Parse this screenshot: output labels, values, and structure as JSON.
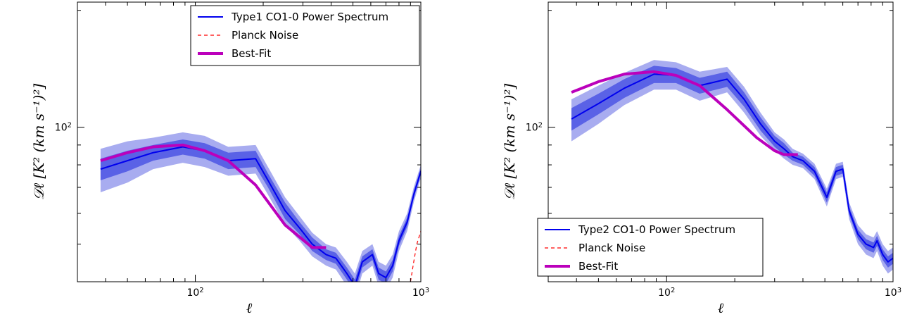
{
  "chart_data": [
    {
      "type": "line",
      "xscale": "log",
      "yscale": "log",
      "xlim": [
        30,
        1000
      ],
      "ylim": [
        40,
        210
      ],
      "xticks": [
        {
          "value": 100,
          "label": "10^2"
        },
        {
          "value": 1000,
          "label": "10^3"
        }
      ],
      "yticks": [
        {
          "value": 100,
          "label": "10^2"
        }
      ],
      "xlabel": "ℓ",
      "ylabel": "𝒟ℓ [K² (km s⁻¹)²]",
      "grid": false,
      "legend_position": "top-right",
      "series": [
        {
          "name": "Type1 CO1-0 Power Spectrum",
          "color": "#0000ee",
          "style": "solid",
          "x": [
            38,
            50,
            65,
            88,
            110,
            140,
            185,
            210,
            250,
            290,
            330,
            380,
            420,
            470,
            510,
            550,
            610,
            650,
            700,
            750,
            800,
            870,
            930,
            1000
          ],
          "y": [
            78,
            82,
            86,
            89,
            87,
            82,
            83,
            73,
            61,
            55,
            50,
            47,
            46,
            42,
            39,
            45,
            47,
            42,
            41,
            44,
            51,
            57,
            67,
            77
          ],
          "band_inner": [
            5,
            5,
            4,
            4,
            4,
            4,
            4,
            3,
            3,
            2,
            2,
            1.5,
            1.5,
            1.5,
            1.5,
            1.5,
            1.5,
            1.5,
            1.5,
            1.5,
            1.5,
            1.5,
            1.5,
            1.5
          ],
          "band_outer": [
            10,
            10,
            8,
            8,
            8,
            7,
            7,
            6,
            5,
            4,
            3.5,
            3,
            3,
            3,
            3,
            3,
            3,
            3,
            3,
            3,
            3,
            3,
            3,
            3
          ]
        },
        {
          "name": "Planck Noise",
          "color": "#ff0000",
          "style": "dashed",
          "x": [
            900,
            930,
            960,
            1000
          ],
          "y": [
            40,
            45,
            50,
            54
          ]
        },
        {
          "name": "Best-Fit",
          "color": "#bb00bb",
          "style": "solid-thick",
          "x": [
            38,
            50,
            65,
            88,
            110,
            140,
            185,
            250,
            330,
            380
          ],
          "y": [
            82,
            86,
            89,
            90,
            87,
            82,
            71,
            56,
            49,
            49
          ]
        }
      ]
    },
    {
      "type": "line",
      "xscale": "log",
      "yscale": "log",
      "xlim": [
        30,
        1000
      ],
      "ylim": [
        40,
        210
      ],
      "xticks": [
        {
          "value": 100,
          "label": "10^2"
        },
        {
          "value": 1000,
          "label": "10^3"
        }
      ],
      "yticks": [
        {
          "value": 100,
          "label": "10^2"
        }
      ],
      "xlabel": "ℓ",
      "ylabel": "𝒟ℓ [K² (km s⁻¹)²]",
      "grid": false,
      "legend_position": "bottom-left",
      "series": [
        {
          "name": "Type2 CO1-0 Power Spectrum",
          "color": "#0000ee",
          "style": "solid",
          "x": [
            38,
            50,
            65,
            88,
            110,
            140,
            185,
            220,
            260,
            300,
            330,
            360,
            400,
            450,
            510,
            560,
            600,
            640,
            700,
            760,
            820,
            850,
            900,
            950,
            1000
          ],
          "y": [
            105,
            115,
            126,
            137,
            136,
            128,
            133,
            118,
            102,
            92,
            88,
            84,
            82,
            77,
            66,
            77,
            78,
            61,
            53,
            50,
            49,
            51,
            47,
            45,
            46
          ],
          "band_inner": [
            7,
            7,
            7,
            7,
            6,
            6,
            6,
            5,
            4,
            3,
            3,
            2,
            2,
            2,
            2,
            2,
            2,
            1.5,
            1.5,
            1.5,
            1.5,
            1.5,
            1.5,
            1.5,
            1.5
          ],
          "band_outer": [
            13,
            13,
            12,
            12,
            11,
            11,
            10,
            9,
            7,
            5,
            5,
            4,
            3.5,
            3.5,
            3.5,
            3.5,
            3.5,
            3,
            3,
            3,
            3,
            3,
            3,
            3,
            3
          ]
        },
        {
          "name": "Planck Noise",
          "color": "#ff0000",
          "style": "dashed",
          "x": [],
          "y": []
        },
        {
          "name": "Best-Fit",
          "color": "#bb00bb",
          "style": "solid-thick",
          "x": [
            38,
            50,
            65,
            88,
            110,
            140,
            185,
            250,
            300,
            330,
            380
          ],
          "y": [
            123,
            131,
            137,
            139,
            136,
            128,
            111,
            94,
            87,
            85,
            85
          ]
        }
      ]
    }
  ]
}
